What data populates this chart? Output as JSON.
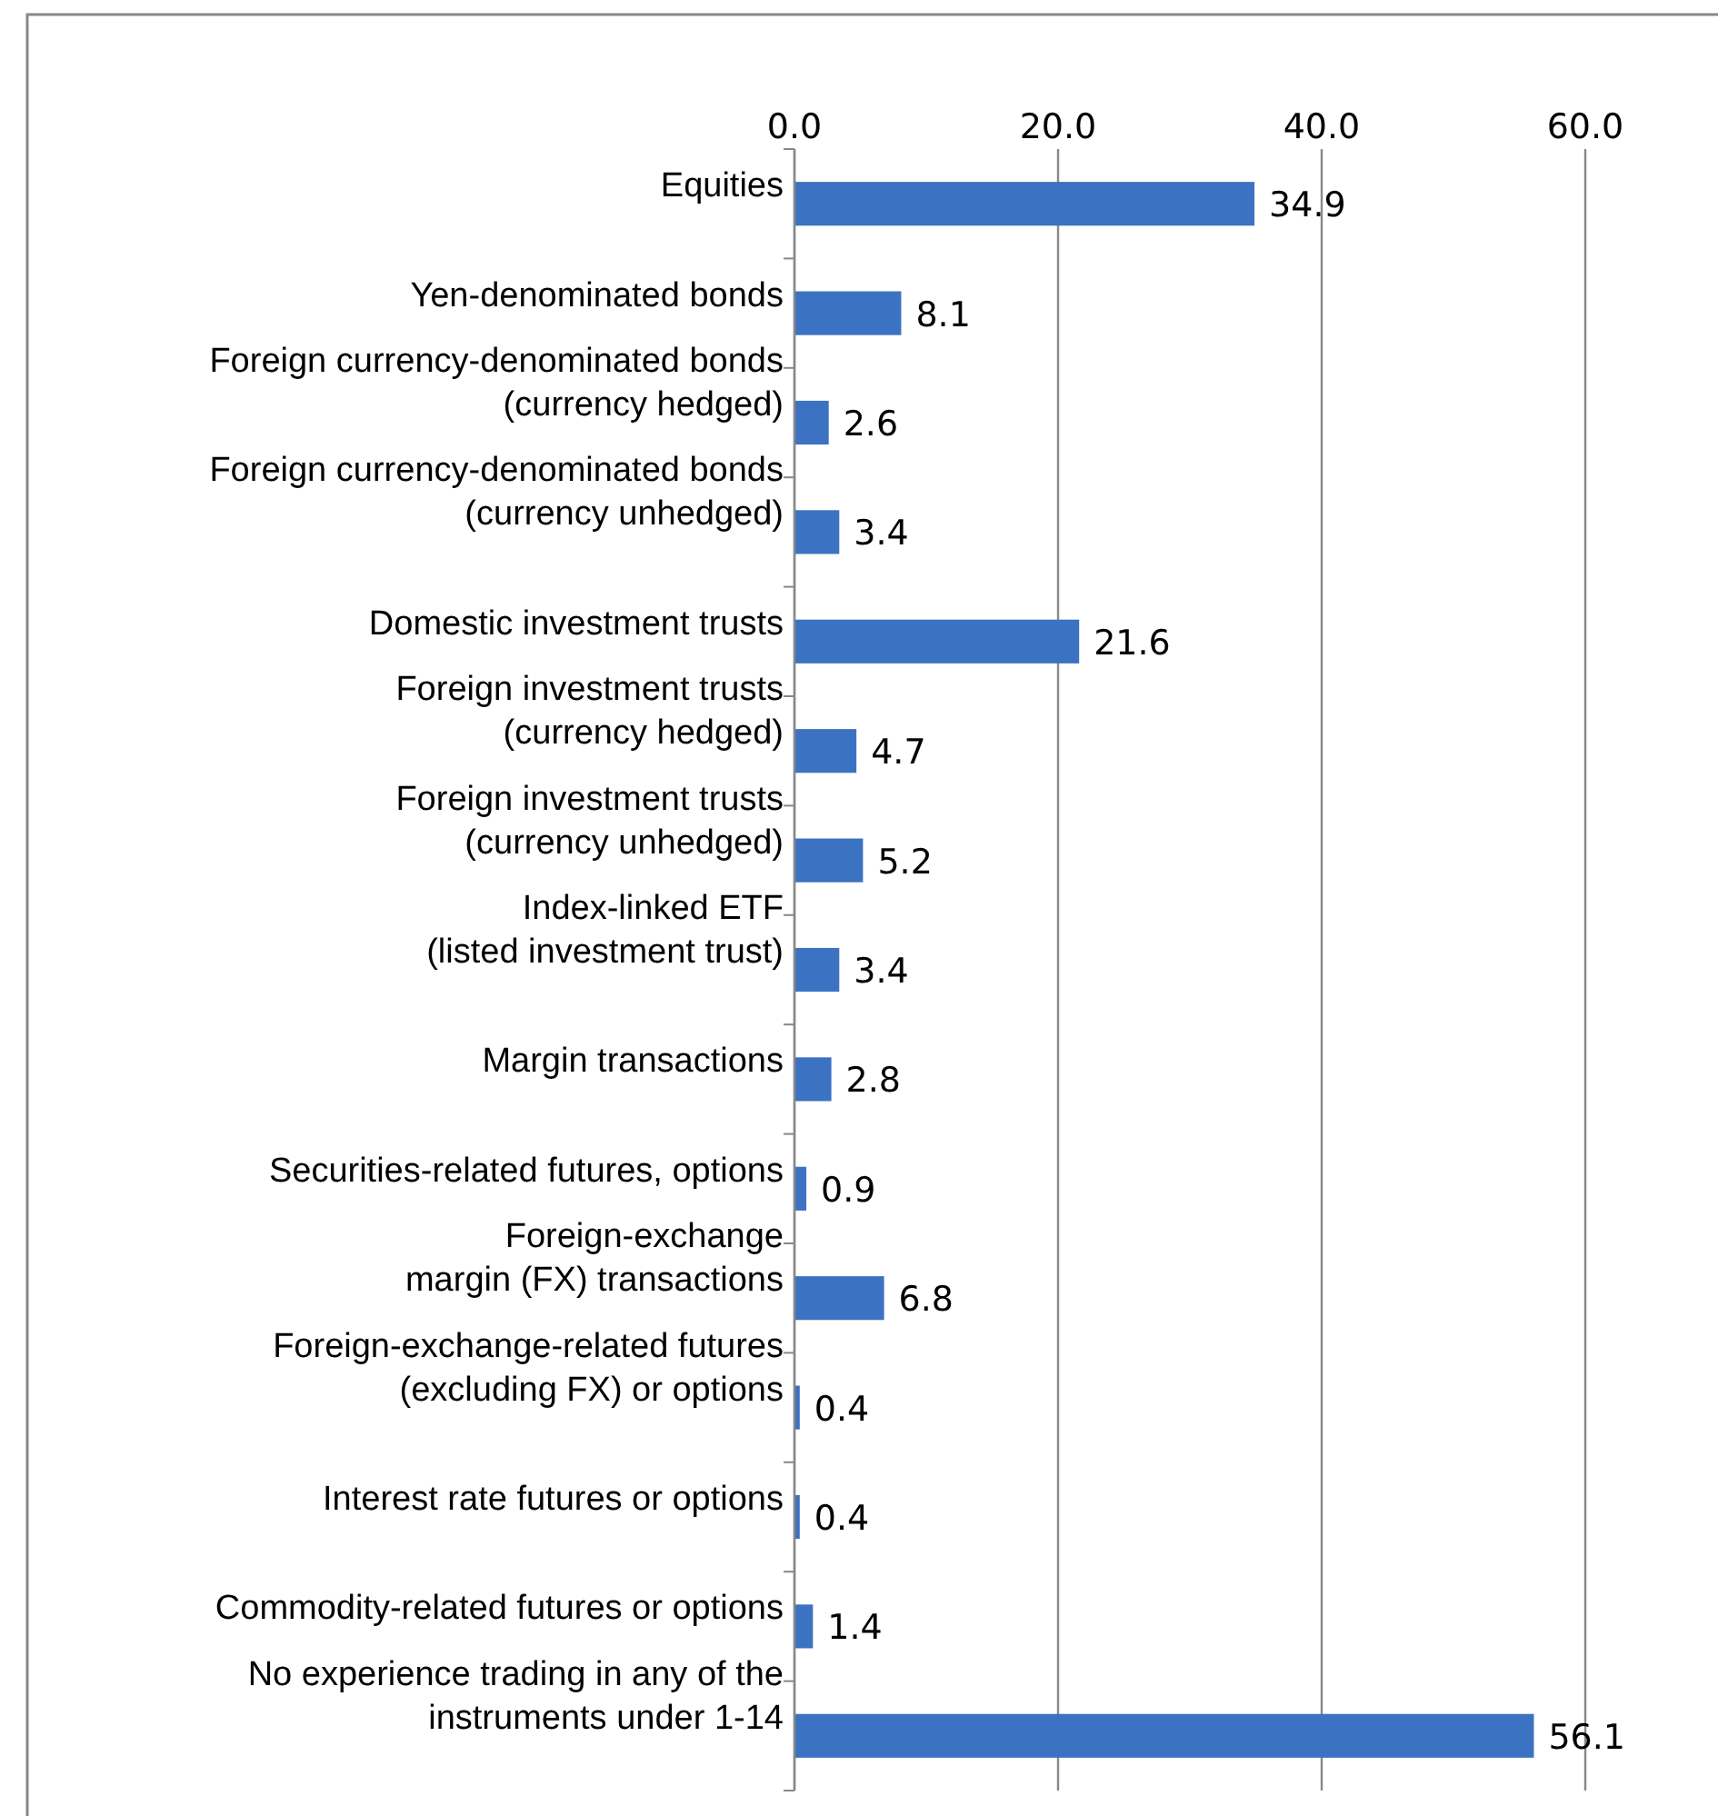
{
  "chart_data": {
    "type": "bar",
    "orientation": "horizontal",
    "categories": [
      "Equities",
      "Yen-denominated bonds",
      "Foreign currency-denominated bonds\n(currency hedged)",
      "Foreign currency-denominated bonds\n(currency unhedged)",
      "Domestic investment trusts",
      "Foreign investment trusts\n(currency hedged)",
      "Foreign investment trusts\n(currency unhedged)",
      "Index-linked ETF\n(listed investment trust)",
      "Margin transactions",
      "Securities-related futures, options",
      "Foreign-exchange\nmargin (FX) transactions",
      "Foreign-exchange-related futures\n(excluding FX) or options",
      "Interest rate futures or options",
      "Commodity-related futures or options",
      "No experience trading in any of the\ninstruments under 1-14"
    ],
    "values": [
      34.9,
      8.1,
      2.6,
      3.4,
      21.6,
      4.7,
      5.2,
      3.4,
      2.8,
      0.9,
      6.8,
      0.4,
      0.4,
      1.4,
      56.1
    ],
    "color": "#3c72c2",
    "xlim": [
      0,
      60
    ],
    "xticks": [
      {
        "value": 0,
        "label": "0.0"
      },
      {
        "value": 20,
        "label": "20.0"
      },
      {
        "value": 40,
        "label": "40.0"
      },
      {
        "value": 60,
        "label": "60.0"
      }
    ],
    "grid": "x",
    "data_labels": true
  }
}
